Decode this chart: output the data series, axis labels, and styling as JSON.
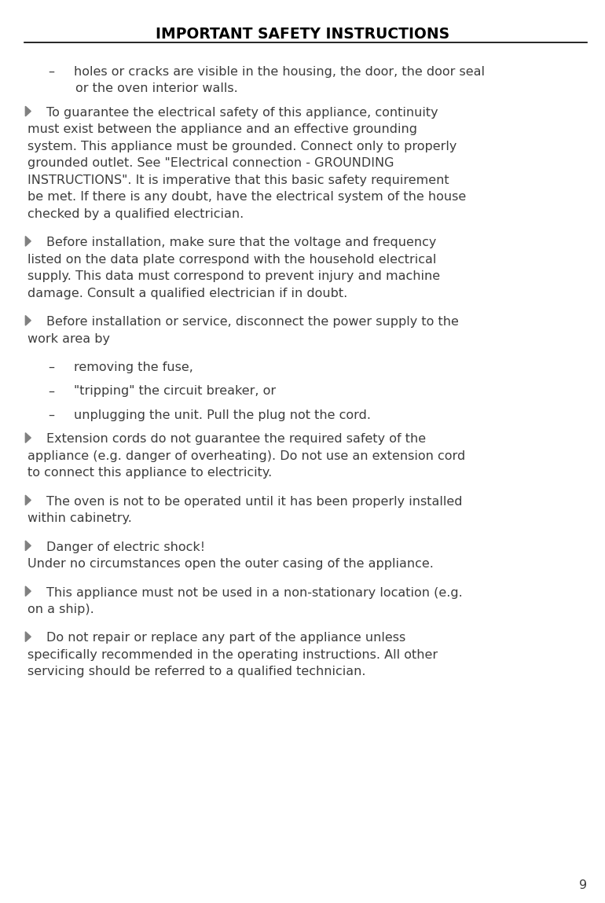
{
  "title": "IMPORTANT SAFETY INSTRUCTIONS",
  "page_number": "9",
  "background_color": "#ffffff",
  "text_color": "#3d3d3d",
  "title_color": "#000000",
  "line_color": "#000000",
  "bullet_color": "#808080",
  "font_size_title": 13.5,
  "font_size_body": 11.5,
  "paragraphs": [
    {
      "type": "dash_item",
      "text": "holes or cracks are visible in the housing, the door, the door seal\nor the oven interior walls."
    },
    {
      "type": "bullet_para",
      "text": "To guarantee the electrical safety of this appliance, continuity\nmust exist between the appliance and an effective grounding\nsystem. This appliance must be grounded. Connect only to properly\ngrounded outlet. See \"Electrical connection - GROUNDING\nINSTRUCTIONS\". It is imperative that this basic safety requirement\nbe met. If there is any doubt, have the electrical system of the house\nchecked by a qualified electrician."
    },
    {
      "type": "bullet_para",
      "text": "Before installation, make sure that the voltage and frequency\nlisted on the data plate correspond with the household electrical\nsupply. This data must correspond to prevent injury and machine\ndamage. Consult a qualified electrician if in doubt."
    },
    {
      "type": "bullet_para",
      "text": "Before installation or service, disconnect the power supply to the\nwork area by"
    },
    {
      "type": "dash_item",
      "text": "removing the fuse,"
    },
    {
      "type": "dash_item",
      "text": "\"tripping\" the circuit breaker, or"
    },
    {
      "type": "dash_item",
      "text": "unplugging the unit. Pull the plug not the cord."
    },
    {
      "type": "bullet_para",
      "text": "Extension cords do not guarantee the required safety of the\nappliance (e.g. danger of overheating). Do not use an extension cord\nto connect this appliance to electricity."
    },
    {
      "type": "bullet_para",
      "text": "The oven is not to be operated until it has been properly installed\nwithin cabinetry."
    },
    {
      "type": "bullet_para",
      "text": "Danger of electric shock!\nUnder no circumstances open the outer casing of the appliance."
    },
    {
      "type": "bullet_para",
      "text": "This appliance must not be used in a non-stationary location (e.g.\non a ship)."
    },
    {
      "type": "bullet_para",
      "text": "Do not repair or replace any part of the appliance unless\nspecifically recommended in the operating instructions. All other\nservicing should be referred to a qualified technician."
    }
  ]
}
